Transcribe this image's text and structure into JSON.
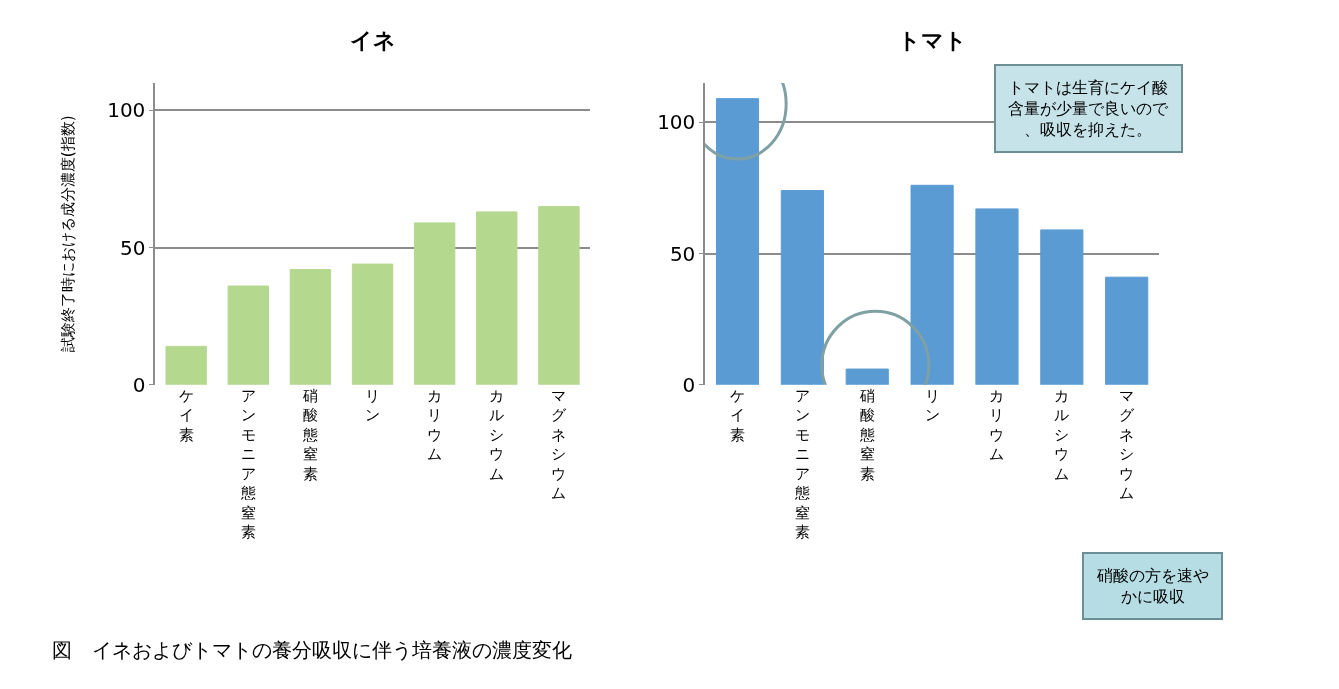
{
  "chart_data": [
    {
      "type": "bar",
      "title": "イネ",
      "ylabel": "試験終了時における成分濃度(指数)",
      "categories": [
        "ケイ素",
        "アンモニア態窒素",
        "硝酸態窒素",
        "リン",
        "カリウム",
        "カルシウム",
        "マグネシウム"
      ],
      "values": [
        14,
        36,
        42,
        44,
        59,
        63,
        65
      ],
      "color": "#b5d88f",
      "ylim": [
        0,
        110
      ],
      "yticks": [
        0,
        50,
        100
      ],
      "grid": "y",
      "legend": false,
      "annotations": [
        "図　イネおよびトマトの養分吸収に伴う培養液の濃度変化"
      ]
    },
    {
      "type": "bar",
      "title": "トマト",
      "categories": [
        "ケイ素",
        "アンモニア態窒素",
        "硝酸態窒素",
        "リン",
        "カリウム",
        "カルシウム",
        "マグネシウム"
      ],
      "values": [
        109,
        74,
        6,
        76,
        67,
        59,
        41
      ],
      "color": "#5a9bd3",
      "ylim": [
        0,
        115
      ],
      "yticks": [
        0,
        50,
        100
      ],
      "grid": "y",
      "legend": false,
      "annotations": [
        "トマトは生育にケイ酸含量が少量で良いので、吸収を抑えた。",
        "硝酸の方を速やかに吸収"
      ]
    }
  ]
}
